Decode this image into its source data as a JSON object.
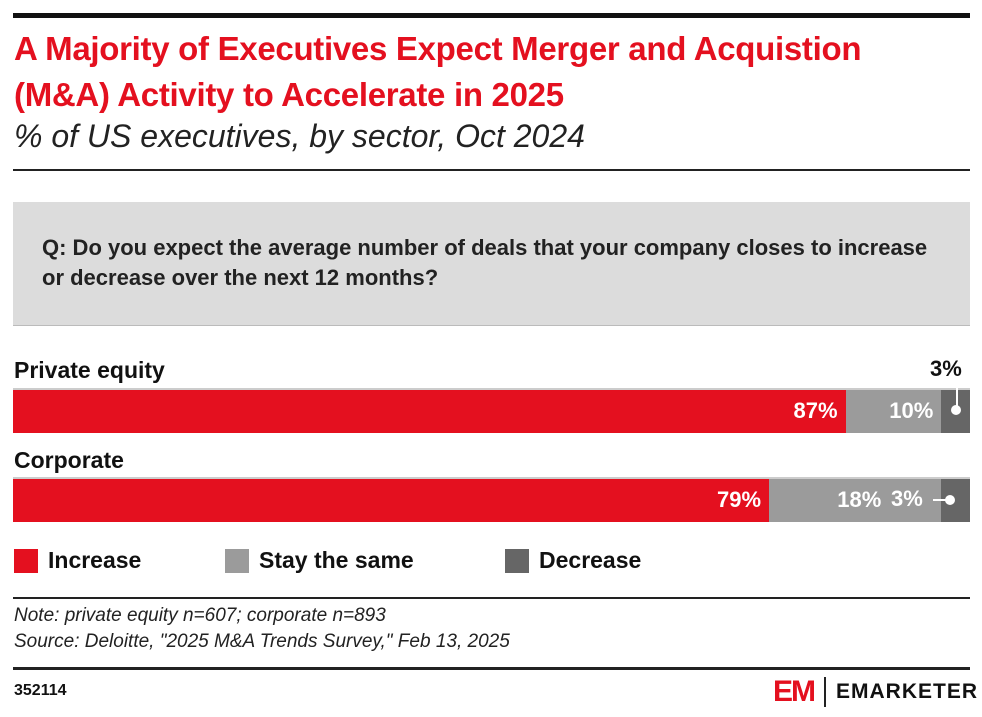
{
  "title": "A Majority of Executives Expect Merger and Acquistion (M&A) Activity to Accelerate in 2025",
  "subtitle": "% of US executives, by sector, Oct 2024",
  "question": "Q: Do you expect the average number of deals that your company closes to increase or decrease over the next 12 months?",
  "chart_data": {
    "type": "bar",
    "orientation": "horizontal-stacked",
    "categories": [
      "Private equity",
      "Corporate"
    ],
    "series": [
      {
        "name": "Increase",
        "values": [
          87,
          79
        ],
        "labels": [
          "87%",
          "79%"
        ],
        "color": "#e4101f"
      },
      {
        "name": "Stay the same",
        "values": [
          10,
          18
        ],
        "labels": [
          "10%",
          "18%"
        ],
        "color": "#9b9b9b"
      },
      {
        "name": "Decrease",
        "values": [
          3,
          3
        ],
        "labels": [
          "3%",
          "3%"
        ],
        "color": "#666666"
      }
    ],
    "legend": "bottom"
  },
  "notes": [
    "Note: private equity n=607; corporate n=893",
    "Source: Deloitte, \"2025 M&A Trends Survey,\" Feb 13, 2025"
  ],
  "chart_id": "352114",
  "brand": {
    "logo_text": "EM",
    "name": "EMARKETER",
    "color": "#e4101f"
  }
}
